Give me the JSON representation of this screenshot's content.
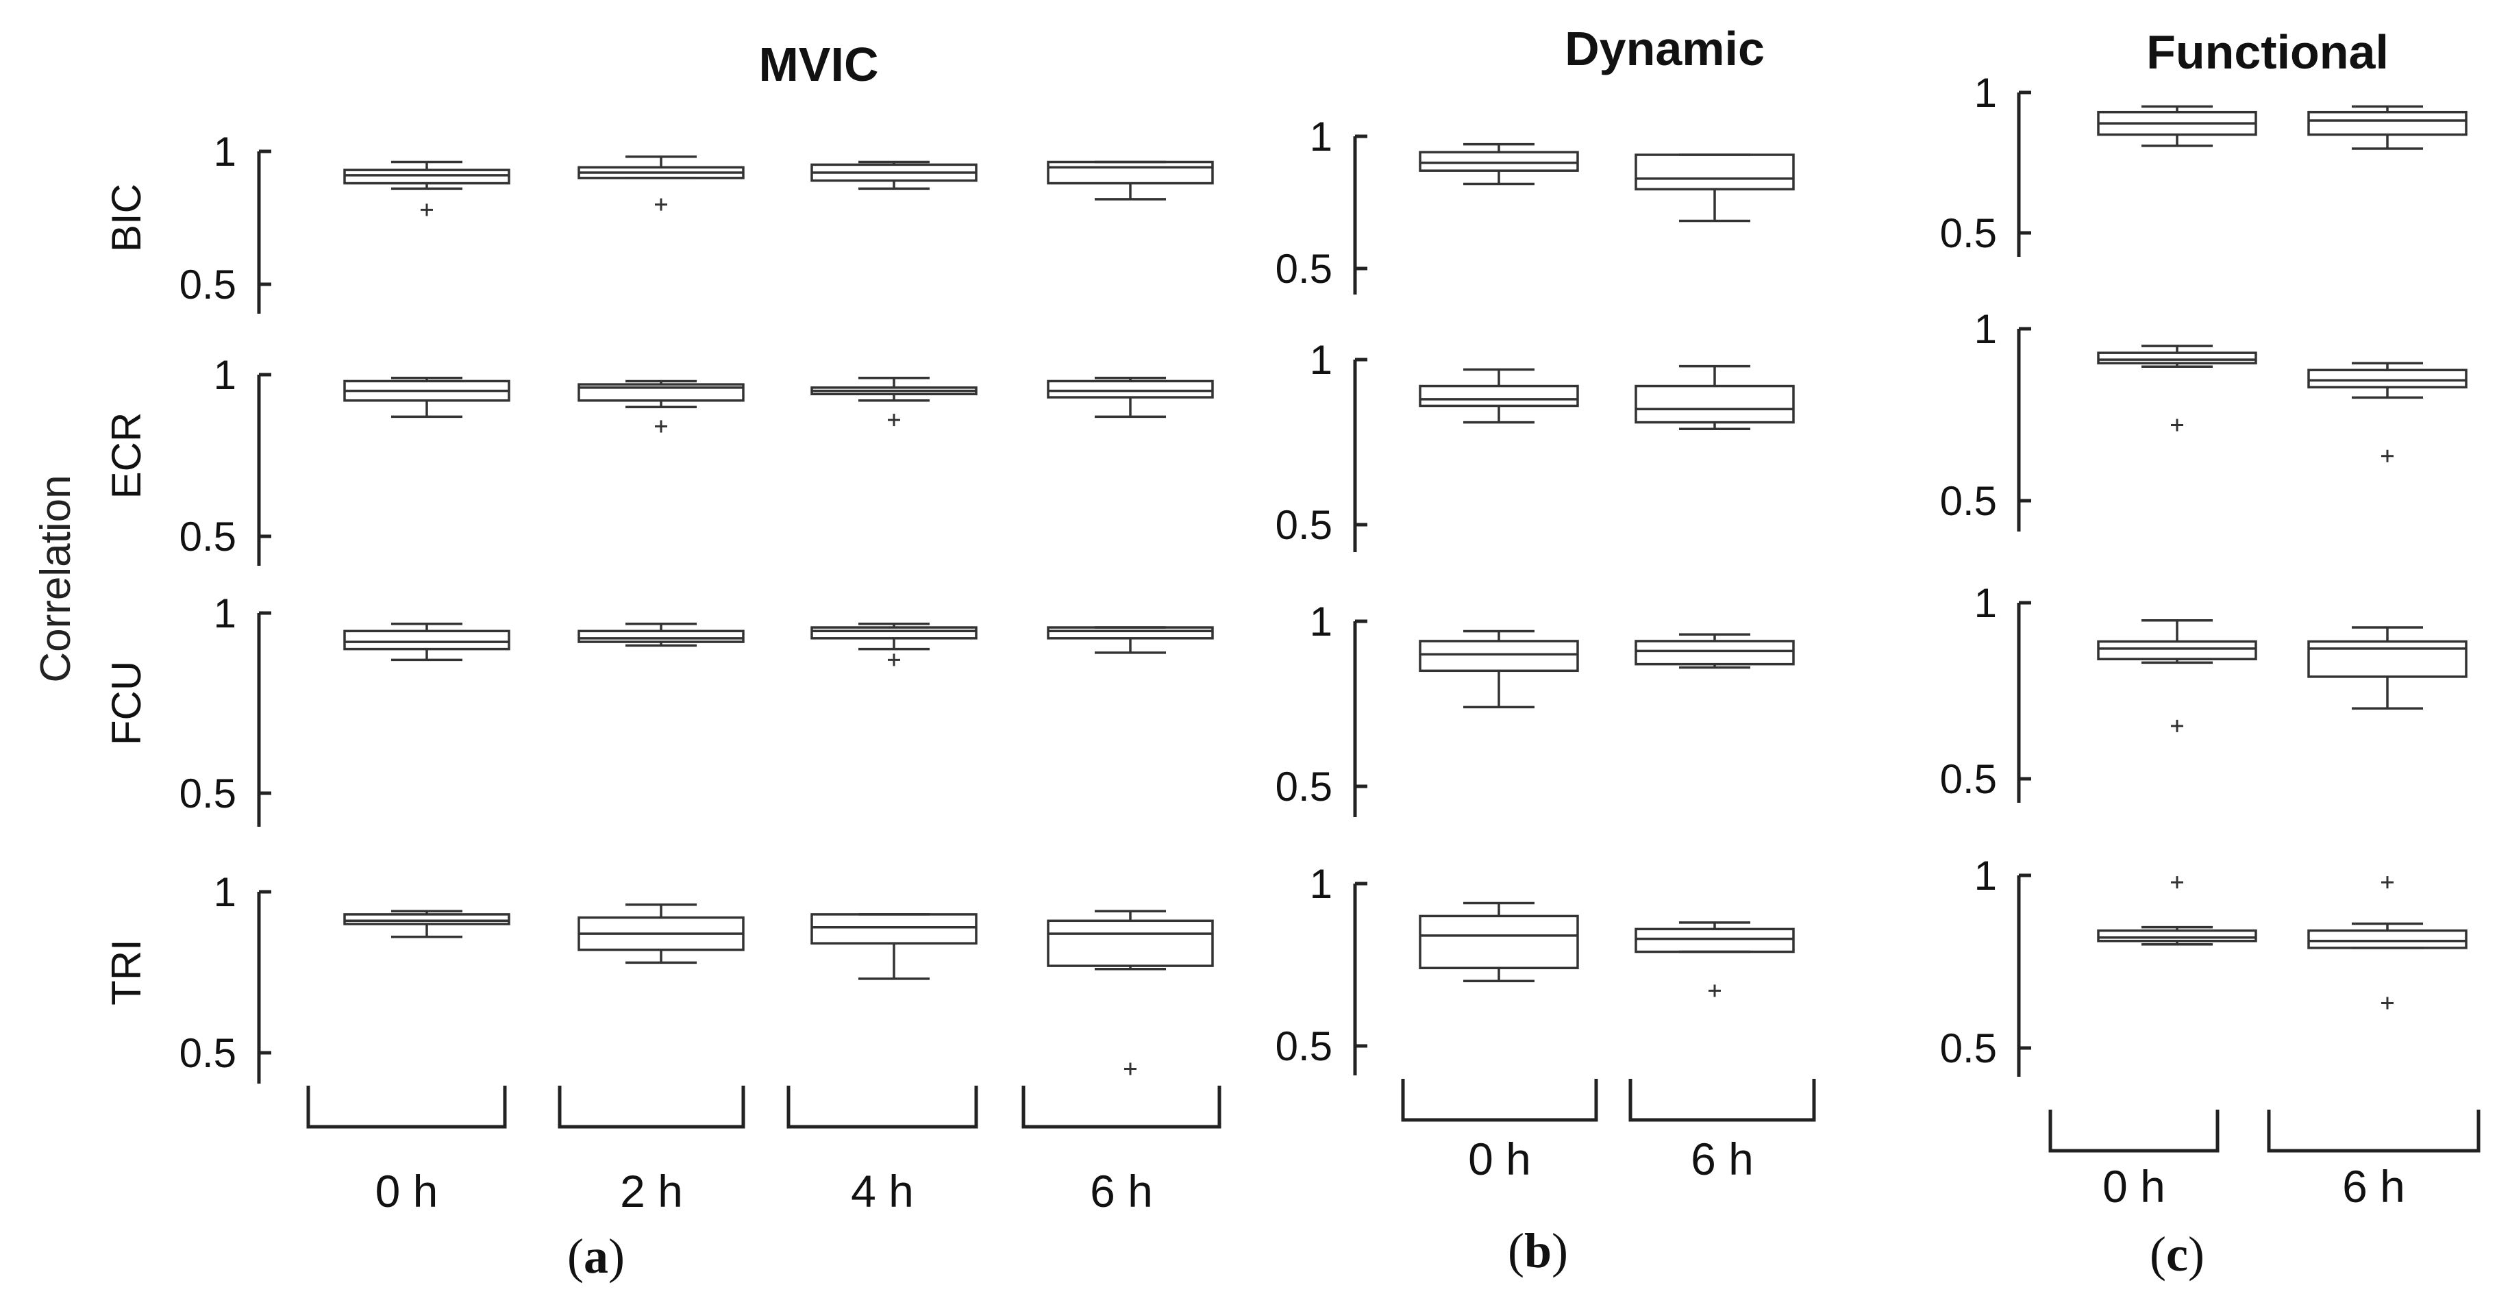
{
  "chart_data": [
    {
      "type": "box",
      "panel": "(a)",
      "title": "MVIC",
      "ylabel": "Correlation",
      "categories": [
        "0 h",
        "2 h",
        "4 h",
        "6 h"
      ],
      "ylim": [
        0.4,
        1
      ],
      "yticks": [
        "1",
        "0.5"
      ],
      "rows": [
        {
          "name": "BIC",
          "boxes": [
            {
              "min": 0.86,
              "q1": 0.88,
              "median": 0.91,
              "q3": 0.93,
              "max": 0.96,
              "outliers": [
                0.78
              ]
            },
            {
              "min": 0.9,
              "q1": 0.9,
              "median": 0.92,
              "q3": 0.94,
              "max": 0.98,
              "outliers": [
                0.8
              ]
            },
            {
              "min": 0.86,
              "q1": 0.89,
              "median": 0.92,
              "q3": 0.95,
              "max": 0.96,
              "outliers": []
            },
            {
              "min": 0.82,
              "q1": 0.88,
              "median": 0.94,
              "q3": 0.96,
              "max": 0.96,
              "outliers": []
            }
          ]
        },
        {
          "name": "ECR",
          "boxes": [
            {
              "min": 0.87,
              "q1": 0.92,
              "median": 0.95,
              "q3": 0.98,
              "max": 0.99,
              "outliers": []
            },
            {
              "min": 0.9,
              "q1": 0.92,
              "median": 0.96,
              "q3": 0.97,
              "max": 0.98,
              "outliers": [
                0.84
              ]
            },
            {
              "min": 0.92,
              "q1": 0.94,
              "median": 0.95,
              "q3": 0.96,
              "max": 0.99,
              "outliers": [
                0.86
              ]
            },
            {
              "min": 0.87,
              "q1": 0.93,
              "median": 0.95,
              "q3": 0.98,
              "max": 0.99,
              "outliers": []
            }
          ]
        },
        {
          "name": "FCU",
          "boxes": [
            {
              "min": 0.87,
              "q1": 0.9,
              "median": 0.92,
              "q3": 0.95,
              "max": 0.97,
              "outliers": []
            },
            {
              "min": 0.91,
              "q1": 0.92,
              "median": 0.93,
              "q3": 0.95,
              "max": 0.97,
              "outliers": []
            },
            {
              "min": 0.9,
              "q1": 0.93,
              "median": 0.95,
              "q3": 0.96,
              "max": 0.97,
              "outliers": [
                0.87
              ]
            },
            {
              "min": 0.89,
              "q1": 0.93,
              "median": 0.95,
              "q3": 0.96,
              "max": 0.96,
              "outliers": []
            }
          ]
        },
        {
          "name": "TRI",
          "boxes": [
            {
              "min": 0.86,
              "q1": 0.9,
              "median": 0.91,
              "q3": 0.93,
              "max": 0.94,
              "outliers": []
            },
            {
              "min": 0.78,
              "q1": 0.82,
              "median": 0.87,
              "q3": 0.92,
              "max": 0.96,
              "outliers": []
            },
            {
              "min": 0.73,
              "q1": 0.84,
              "median": 0.89,
              "q3": 0.93,
              "max": 0.93,
              "outliers": []
            },
            {
              "min": 0.76,
              "q1": 0.77,
              "median": 0.87,
              "q3": 0.91,
              "max": 0.94,
              "outliers": [
                0.45
              ]
            }
          ]
        }
      ]
    },
    {
      "type": "box",
      "panel": "(b)",
      "title": "Dynamic",
      "categories": [
        "0 h",
        "6 h"
      ],
      "ylim": [
        0.4,
        1
      ],
      "yticks": [
        "1",
        "0.5"
      ],
      "rows": [
        {
          "name": "BIC",
          "boxes": [
            {
              "min": 0.82,
              "q1": 0.87,
              "median": 0.9,
              "q3": 0.94,
              "max": 0.97,
              "outliers": []
            },
            {
              "min": 0.68,
              "q1": 0.8,
              "median": 0.84,
              "q3": 0.93,
              "max": 0.93,
              "outliers": []
            }
          ]
        },
        {
          "name": "ECR",
          "boxes": [
            {
              "min": 0.81,
              "q1": 0.86,
              "median": 0.88,
              "q3": 0.92,
              "max": 0.97,
              "outliers": []
            },
            {
              "min": 0.79,
              "q1": 0.81,
              "median": 0.85,
              "q3": 0.92,
              "max": 0.98,
              "outliers": []
            }
          ]
        },
        {
          "name": "FCU",
          "boxes": [
            {
              "min": 0.74,
              "q1": 0.85,
              "median": 0.9,
              "q3": 0.94,
              "max": 0.97,
              "outliers": []
            },
            {
              "min": 0.86,
              "q1": 0.87,
              "median": 0.91,
              "q3": 0.94,
              "max": 0.96,
              "outliers": []
            }
          ]
        },
        {
          "name": "TRI",
          "boxes": [
            {
              "min": 0.7,
              "q1": 0.74,
              "median": 0.84,
              "q3": 0.9,
              "max": 0.94,
              "outliers": []
            },
            {
              "min": 0.79,
              "q1": 0.79,
              "median": 0.83,
              "q3": 0.86,
              "max": 0.88,
              "outliers": [
                0.67
              ]
            }
          ]
        }
      ]
    },
    {
      "type": "box",
      "panel": "(c)",
      "title": "Functional",
      "categories": [
        "0 h",
        "6 h"
      ],
      "ylim": [
        0.4,
        1
      ],
      "yticks": [
        "1",
        "0.5"
      ],
      "rows": [
        {
          "name": "BIC",
          "boxes": [
            {
              "min": 0.81,
              "q1": 0.85,
              "median": 0.89,
              "q3": 0.93,
              "max": 0.95,
              "outliers": []
            },
            {
              "min": 0.8,
              "q1": 0.85,
              "median": 0.9,
              "q3": 0.93,
              "max": 0.95,
              "outliers": []
            }
          ]
        },
        {
          "name": "ECR",
          "boxes": [
            {
              "min": 0.89,
              "q1": 0.9,
              "median": 0.91,
              "q3": 0.93,
              "max": 0.95,
              "outliers": [
                0.72
              ]
            },
            {
              "min": 0.8,
              "q1": 0.83,
              "median": 0.85,
              "q3": 0.88,
              "max": 0.9,
              "outliers": [
                0.63
              ]
            }
          ]
        },
        {
          "name": "FCU",
          "boxes": [
            {
              "min": 0.83,
              "q1": 0.84,
              "median": 0.87,
              "q3": 0.89,
              "max": 0.95,
              "outliers": [
                0.65
              ]
            },
            {
              "min": 0.7,
              "q1": 0.79,
              "median": 0.87,
              "q3": 0.89,
              "max": 0.93,
              "outliers": []
            }
          ]
        },
        {
          "name": "TRI",
          "boxes": [
            {
              "min": 0.8,
              "q1": 0.81,
              "median": 0.82,
              "q3": 0.84,
              "max": 0.85,
              "outliers": [
                0.98
              ]
            },
            {
              "min": 0.79,
              "q1": 0.79,
              "median": 0.81,
              "q3": 0.84,
              "max": 0.86,
              "outliers": [
                0.98,
                0.63
              ]
            }
          ]
        }
      ]
    }
  ]
}
